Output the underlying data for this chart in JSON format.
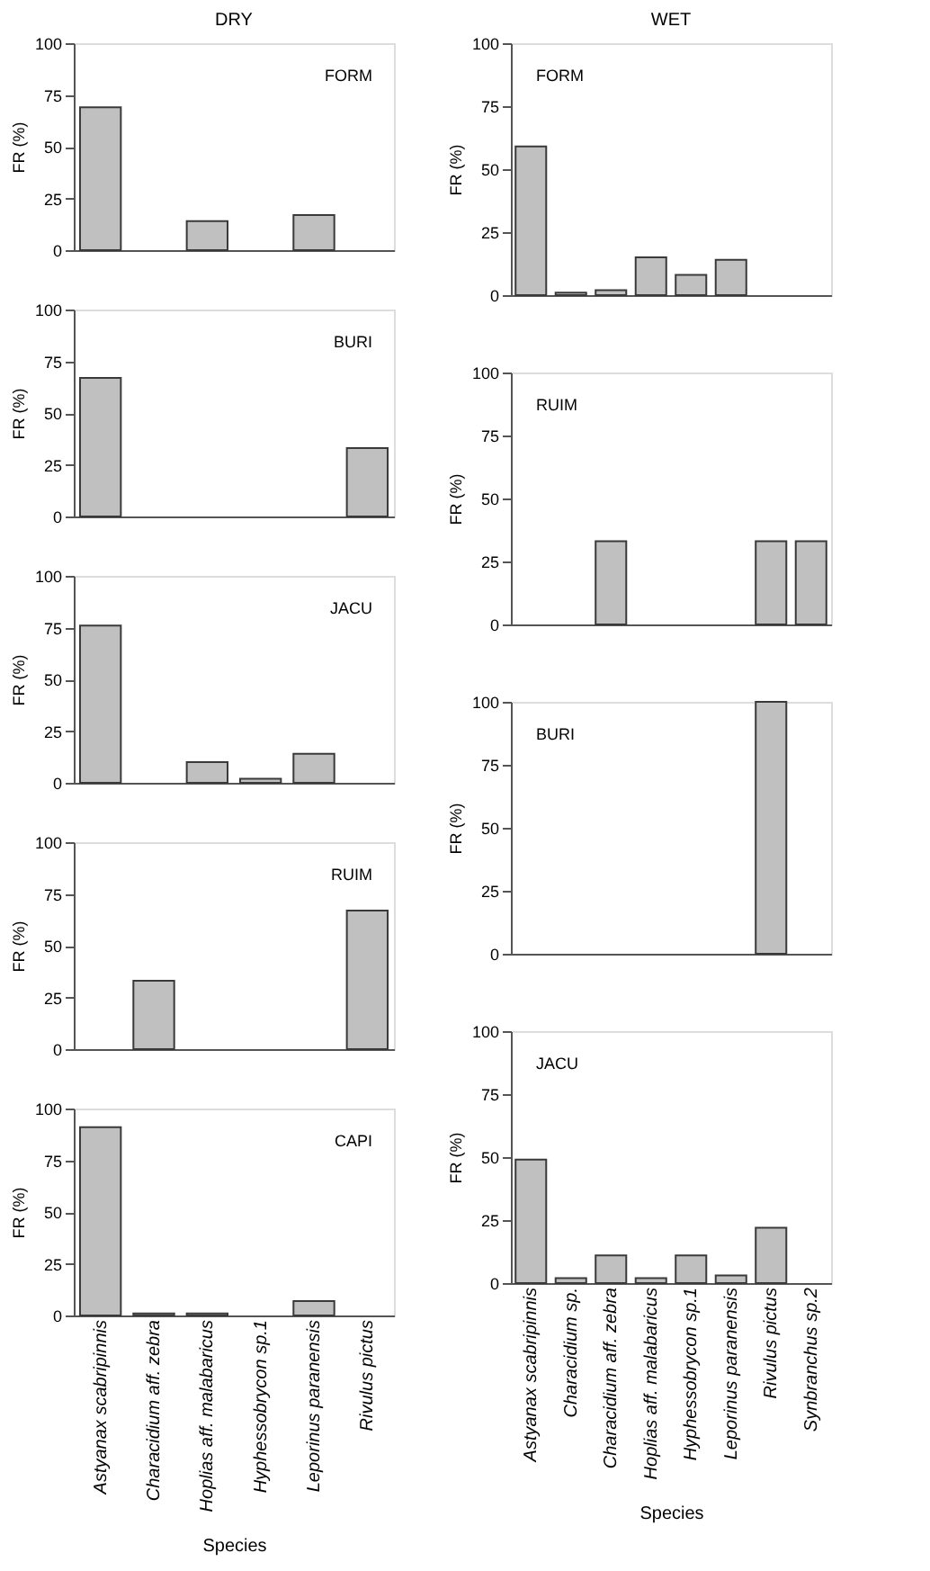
{
  "chart_data": [
    {
      "type": "bar",
      "title": "DRY",
      "ylabel": "FR (%)",
      "categories": [
        null,
        null,
        null,
        null,
        null,
        null
      ],
      "values": [
        69,
        0,
        14,
        0,
        17,
        0
      ],
      "color": "#c0c0c0",
      "ylim": [
        0,
        100
      ],
      "yticks": [
        0,
        25,
        50,
        75,
        100
      ],
      "annotations": [
        "FORM"
      ],
      "tick_labels": "y"
    },
    {
      "type": "bar",
      "ylabel": "FR (%)",
      "categories": [
        null,
        null,
        null,
        null,
        null,
        null
      ],
      "values": [
        67,
        0,
        0,
        0,
        0,
        33
      ],
      "color": "#c0c0c0",
      "ylim": [
        0,
        100
      ],
      "yticks": [
        0,
        25,
        50,
        75,
        100
      ],
      "annotations": [
        "BURI"
      ],
      "tick_labels": "y"
    },
    {
      "type": "bar",
      "ylabel": "FR (%)",
      "categories": [
        null,
        null,
        null,
        null,
        null,
        null
      ],
      "values": [
        76,
        0,
        10,
        2,
        14,
        0
      ],
      "color": "#c0c0c0",
      "ylim": [
        0,
        100
      ],
      "yticks": [
        0,
        25,
        50,
        75,
        100
      ],
      "annotations": [
        "JACU"
      ],
      "tick_labels": "y"
    },
    {
      "type": "bar",
      "ylabel": "FR (%)",
      "categories": [
        null,
        null,
        null,
        null,
        null,
        null
      ],
      "values": [
        0,
        33,
        0,
        0,
        0,
        67
      ],
      "color": "#c0c0c0",
      "ylim": [
        0,
        100
      ],
      "yticks": [
        0,
        25,
        50,
        75,
        100
      ],
      "annotations": [
        "RUIM"
      ],
      "tick_labels": "y"
    },
    {
      "type": "bar",
      "ylabel": "FR (%)",
      "xlabel": "Species",
      "categories": [
        "Astyanax scabripinnis",
        "Characidium aff. zebra",
        "Hoplias aff. malabaricus",
        "Hyphessobrycon sp.1",
        "Leporinus paranensis",
        "Rivulus pictus"
      ],
      "values": [
        91,
        1,
        1,
        0,
        7,
        0
      ],
      "color": "#c0c0c0",
      "ylim": [
        0,
        100
      ],
      "yticks": [
        0,
        25,
        50,
        75,
        100
      ],
      "annotations": [
        "CAPI"
      ]
    },
    {
      "type": "bar",
      "title": "WET",
      "ylabel": "FR (%)",
      "categories": [
        null,
        null,
        null,
        null,
        null,
        null,
        null,
        null
      ],
      "values": [
        59,
        1,
        2,
        15,
        8,
        14,
        0,
        0
      ],
      "color": "#c0c0c0",
      "ylim": [
        0,
        100
      ],
      "yticks": [
        0,
        25,
        50,
        75,
        100
      ],
      "annotations": [
        "FORM"
      ],
      "tick_labels": "y"
    },
    {
      "type": "bar",
      "ylabel": "FR (%)",
      "categories": [
        null,
        null,
        null,
        null,
        null,
        null,
        null,
        null
      ],
      "values": [
        null,
        null,
        33,
        null,
        null,
        null,
        33,
        33
      ],
      "color": "#c0c0c0",
      "ylim": [
        0,
        100
      ],
      "yticks": [
        0,
        25,
        50,
        75,
        100
      ],
      "annotations": [
        "RUIM"
      ],
      "tick_labels": "y"
    },
    {
      "type": "bar",
      "ylabel": "FR (%)",
      "categories": [
        null,
        null,
        null,
        null,
        null,
        null,
        null,
        null
      ],
      "values": [
        0,
        0,
        0,
        0,
        0,
        0,
        100,
        0
      ],
      "color": "#c0c0c0",
      "ylim": [
        0,
        100
      ],
      "yticks": [
        0,
        25,
        50,
        75,
        100
      ],
      "annotations": [
        "BURI"
      ],
      "tick_labels": "y"
    },
    {
      "type": "bar",
      "ylabel": "FR (%)",
      "xlabel": "Species",
      "categories": [
        "Astyanax scabripinnis",
        "Characidium sp.",
        "Characidium aff. zebra",
        "Hoplias aff. malabaricus",
        "Hyphessobrycon sp.1",
        "Leporinus paranensis",
        "Rivulus pictus",
        "Synbranchus sp.2"
      ],
      "values": [
        49,
        2,
        11,
        2,
        11,
        3,
        22,
        0
      ],
      "color": "#c0c0c0",
      "ylim": [
        0,
        100
      ],
      "yticks": [
        0,
        25,
        50,
        75,
        100
      ],
      "annotations": [
        "JACU"
      ]
    }
  ]
}
